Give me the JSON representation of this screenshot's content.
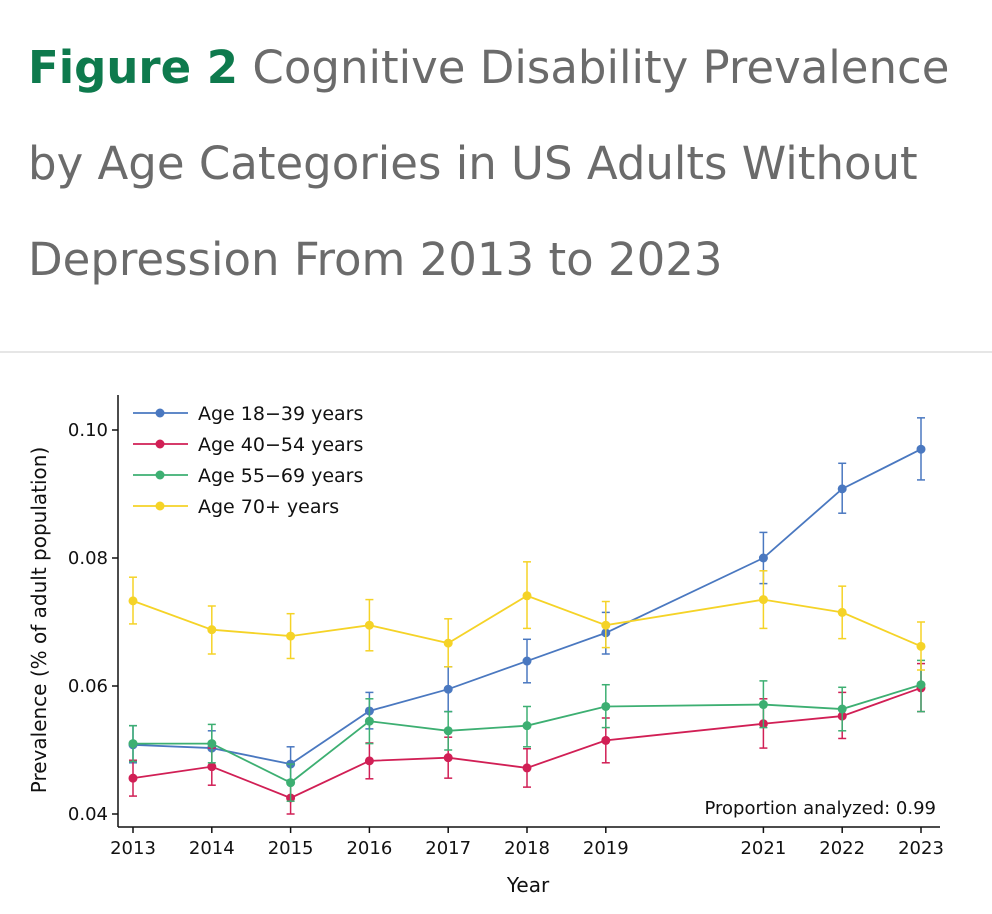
{
  "header": {
    "figure_label": "Figure 2",
    "title": "Cognitive Disability Prevalence by Age Categories in US Adults Without Depression From 2013 to 2023"
  },
  "chart_data": {
    "type": "line",
    "title": "Cognitive Disability Prevalence by Age Categories in US Adults Without Depression From 2013 to 2023",
    "xlabel": "Year",
    "ylabel": "Prevalence (% of adult population)",
    "x": [
      2013,
      2014,
      2015,
      2016,
      2017,
      2018,
      2019,
      2021,
      2022,
      2023
    ],
    "x_tick_labels": [
      "2013",
      "2014",
      "2015",
      "2016",
      "2017",
      "2018",
      "2019",
      "2021",
      "2022",
      "2023"
    ],
    "ylim": [
      0.038,
      0.103
    ],
    "xlim": [
      2012.8,
      2023.25
    ],
    "y_ticks": [
      0.04,
      0.06,
      0.08,
      0.1
    ],
    "y_tick_labels": [
      "0.04",
      "0.06",
      "0.08",
      "0.10"
    ],
    "grid": false,
    "legend_position": "top-left",
    "annotation": "Proportion analyzed: 0.99",
    "series": [
      {
        "name": "Age 18−39 years",
        "color": "#4a78c0",
        "values": [
          0.0508,
          0.0503,
          0.0478,
          0.0561,
          0.0595,
          0.0639,
          0.0683,
          0.08,
          0.0908,
          0.097
        ],
        "ci_low": [
          0.048,
          0.0475,
          0.0453,
          0.0533,
          0.056,
          0.0605,
          0.065,
          0.076,
          0.087,
          0.0922
        ],
        "ci_high": [
          0.0538,
          0.053,
          0.0505,
          0.059,
          0.063,
          0.0673,
          0.0715,
          0.084,
          0.0948,
          0.1019
        ]
      },
      {
        "name": "Age 40−54 years",
        "color": "#d11f55",
        "values": [
          0.0456,
          0.0474,
          0.0425,
          0.0483,
          0.0488,
          0.0472,
          0.0515,
          0.0541,
          0.0553,
          0.0597
        ],
        "ci_low": [
          0.0428,
          0.0445,
          0.04,
          0.0455,
          0.0456,
          0.0442,
          0.048,
          0.0503,
          0.0518,
          0.056
        ],
        "ci_high": [
          0.0484,
          0.0503,
          0.045,
          0.0511,
          0.052,
          0.0502,
          0.055,
          0.058,
          0.059,
          0.0635
        ]
      },
      {
        "name": "Age 55−69 years",
        "color": "#3daf72",
        "values": [
          0.051,
          0.051,
          0.0449,
          0.0545,
          0.053,
          0.0538,
          0.0568,
          0.0571,
          0.0564,
          0.0602
        ],
        "ci_low": [
          0.0482,
          0.048,
          0.042,
          0.051,
          0.05,
          0.0505,
          0.0535,
          0.0535,
          0.053,
          0.056
        ],
        "ci_high": [
          0.0538,
          0.054,
          0.0478,
          0.058,
          0.056,
          0.0568,
          0.0602,
          0.0608,
          0.0598,
          0.064
        ]
      },
      {
        "name": "Age 70+ years",
        "color": "#f5d327",
        "values": [
          0.0733,
          0.0688,
          0.0678,
          0.0695,
          0.0667,
          0.0741,
          0.0695,
          0.0735,
          0.0715,
          0.0662
        ],
        "ci_low": [
          0.0697,
          0.065,
          0.0643,
          0.0655,
          0.063,
          0.069,
          0.066,
          0.069,
          0.0674,
          0.0625
        ],
        "ci_high": [
          0.077,
          0.0725,
          0.0713,
          0.0735,
          0.0705,
          0.0794,
          0.0732,
          0.078,
          0.0756,
          0.07
        ]
      }
    ]
  }
}
